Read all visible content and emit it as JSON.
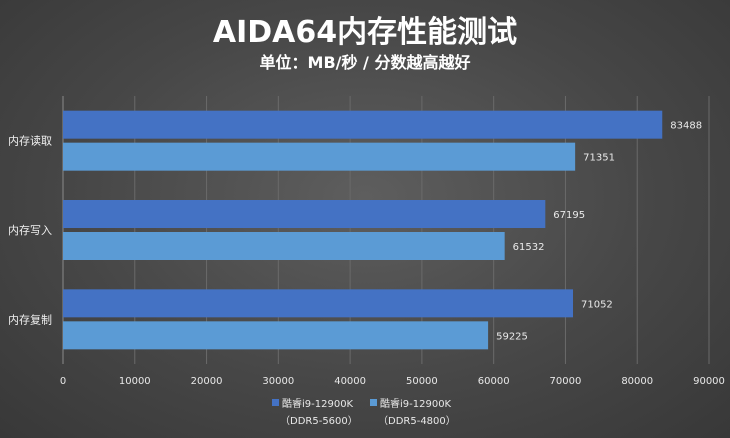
{
  "chart_data": {
    "type": "bar",
    "orientation": "horizontal",
    "title": "AIDA64内存性能测试",
    "subtitle": "单位：MB/秒 / 分数越高越好",
    "categories": [
      "内存读取",
      "内存写入",
      "内存复制"
    ],
    "series": [
      {
        "name": "酷睿i9-12900K",
        "name_line2": "（DDR5-5600）",
        "color": "#4472c4",
        "values": [
          83488,
          67195,
          71052
        ]
      },
      {
        "name": "酷睿i9-12900K",
        "name_line2": "（DDR5-4800）",
        "color": "#5b9bd5",
        "values": [
          71351,
          61532,
          59225
        ]
      }
    ],
    "x_ticks": [
      "0",
      "10000",
      "20000",
      "30000",
      "40000",
      "50000",
      "60000",
      "70000",
      "80000",
      "90000"
    ],
    "xlim": [
      0,
      90000
    ],
    "grid": "vertical",
    "legend": "bottom-right"
  }
}
